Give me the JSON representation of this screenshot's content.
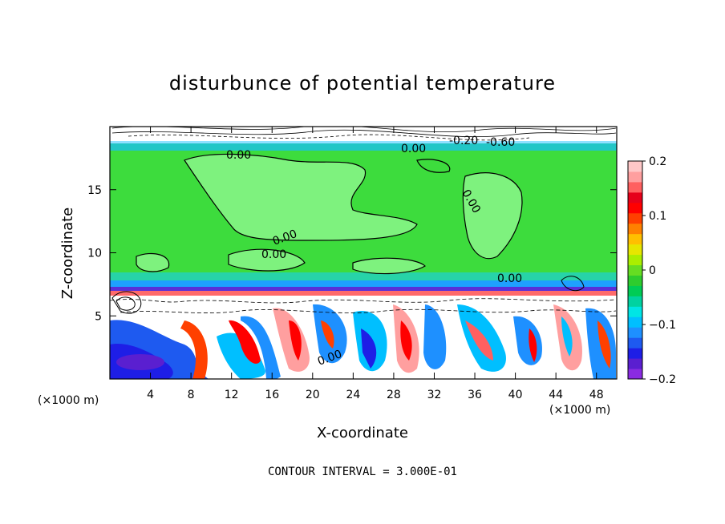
{
  "chart_data": {
    "type": "heatmap",
    "title": "disturbunce of potential temperature",
    "xlabel": "X-coordinate",
    "ylabel": "Z-coordinate",
    "x_unit_left": "(×1000 m)",
    "x_unit_right": "(×1000 m)",
    "xlim": [
      0,
      50
    ],
    "ylim": [
      0,
      20
    ],
    "x_ticks": [
      4,
      8,
      12,
      16,
      20,
      24,
      28,
      32,
      36,
      40,
      44,
      48
    ],
    "y_ticks": [
      5,
      10,
      15
    ],
    "colorbar": {
      "min": -0.2,
      "max": 0.2,
      "tick_values": [
        0.2,
        0.1,
        0,
        -0.1,
        -0.2
      ],
      "tick_labels": [
        "0.2",
        "0.1",
        "0",
        "−0.1",
        "−0.2"
      ],
      "colors": [
        "#8a2be2",
        "#5a1fd0",
        "#1e1ee6",
        "#1e5af0",
        "#1e90ff",
        "#00bfff",
        "#00e5e5",
        "#00d2a0",
        "#00cc55",
        "#2ecc2e",
        "#66dd22",
        "#aaee00",
        "#e6e600",
        "#ffbf00",
        "#ff8000",
        "#ff4000",
        "#ff0000",
        "#e6001a",
        "#ff6060",
        "#ff9f9f",
        "#ffc8c8"
      ]
    },
    "contour_labels": [
      "0.00",
      "0.00",
      "0.00",
      "0.00",
      "0.00",
      "0.00",
      "0.00",
      "-0.20",
      "-0.60"
    ],
    "contour_interval_text": "CONTOUR INTERVAL = 3.000E-01"
  }
}
